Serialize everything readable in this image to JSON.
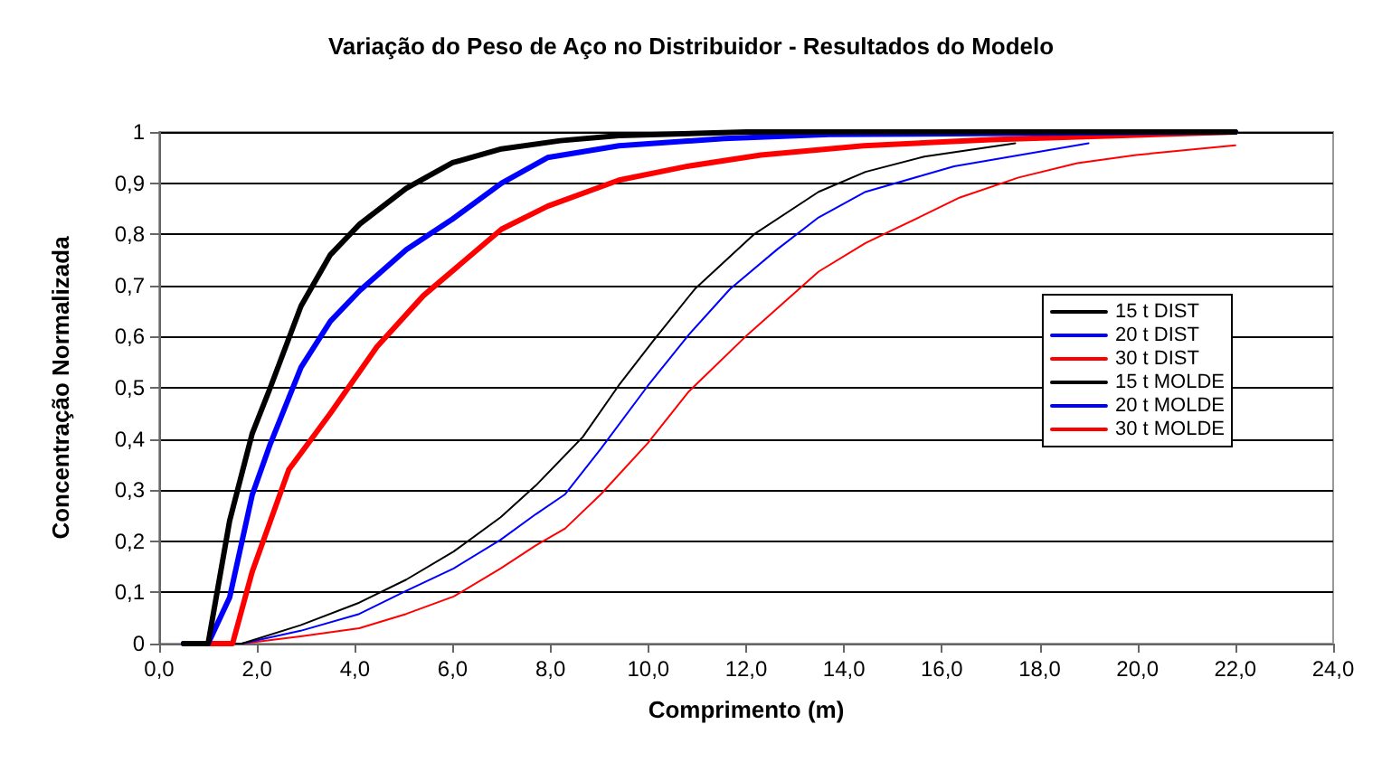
{
  "chart_data": {
    "type": "line",
    "title": "Variação do Peso de Aço no Distribuidor - Resultados do Modelo",
    "xlabel": "Comprimento (m)",
    "ylabel": "Concentração Normalizada",
    "xlim": [
      0,
      24
    ],
    "xticks": [
      {
        "value": 0,
        "label": "0,0"
      },
      {
        "value": 2,
        "label": "2,0"
      },
      {
        "value": 4,
        "label": "4,0"
      },
      {
        "value": 6,
        "label": "6,0"
      },
      {
        "value": 8,
        "label": "8,0"
      },
      {
        "value": 10,
        "label": "10,0"
      },
      {
        "value": 12,
        "label": "12,0"
      },
      {
        "value": 14,
        "label": "14,0"
      },
      {
        "value": 16,
        "label": "16,0"
      },
      {
        "value": 18,
        "label": "18,0"
      },
      {
        "value": 20,
        "label": "20,0"
      },
      {
        "value": 22,
        "label": "22,0"
      },
      {
        "value": 24,
        "label": "24,0"
      }
    ],
    "ylim": [
      0,
      1
    ],
    "yticks": [
      0,
      {
        "value": 0.1,
        "label": "0,1"
      },
      {
        "value": 0.2,
        "label": "0,2"
      },
      {
        "value": 0.3,
        "label": "0,3"
      },
      {
        "value": 0.4,
        "label": "0,4"
      },
      {
        "value": 0.5,
        "label": "0,5"
      },
      {
        "value": 0.6,
        "label": "0,6"
      },
      {
        "value": 0.7,
        "label": "0,7"
      },
      {
        "value": 0.8,
        "label": "0,8"
      },
      {
        "value": 0.9,
        "label": "0,9"
      },
      1
    ],
    "grid": "y",
    "legend": "right",
    "marker": "none",
    "line_style": "solid",
    "series": [
      {
        "name": "15 t DIST",
        "color": "#000000",
        "x": [
          0.5,
          1.0,
          1.44,
          1.9,
          2.27,
          2.9,
          3.5,
          4.1,
          5.05,
          6.0,
          7.0,
          8.2,
          9.4,
          12,
          22
        ],
        "values": [
          0,
          0,
          0.24,
          0.41,
          0.5,
          0.66,
          0.76,
          0.82,
          0.89,
          0.94,
          0.967,
          0.983,
          0.993,
          1,
          1
        ]
      },
      {
        "name": "20 t DIST",
        "color": "#0000ff",
        "x": [
          0.5,
          1.0,
          1.44,
          1.9,
          2.27,
          2.9,
          3.5,
          4.1,
          5.05,
          6.0,
          7.0,
          7.94,
          9.4,
          11.55,
          13.7,
          22
        ],
        "values": [
          0,
          0,
          0.09,
          0.29,
          0.39,
          0.54,
          0.63,
          0.69,
          0.77,
          0.83,
          0.9,
          0.95,
          0.973,
          0.987,
          0.995,
          1
        ]
      },
      {
        "name": "30 t DIST",
        "color": "#ff0000",
        "x": [
          0.5,
          1.5,
          1.9,
          2.65,
          3.5,
          4.45,
          5.4,
          7.0,
          7.94,
          9.4,
          10.8,
          12.3,
          14.4,
          17,
          22
        ],
        "values": [
          0,
          0,
          0.14,
          0.34,
          0.45,
          0.58,
          0.68,
          0.81,
          0.855,
          0.906,
          0.933,
          0.955,
          0.973,
          0.985,
          1
        ]
      },
      {
        "name": "15 t MOLDE",
        "color": "#000000",
        "x": [
          1.0,
          1.69,
          2.89,
          4.09,
          5.05,
          6.02,
          6.98,
          7.7,
          8.66,
          9.39,
          10.11,
          10.95,
          12.16,
          13.48,
          14.44,
          15.64,
          17.5
        ],
        "values": [
          0,
          0,
          0.036,
          0.08,
          0.125,
          0.18,
          0.247,
          0.309,
          0.404,
          0.504,
          0.593,
          0.693,
          0.8,
          0.883,
          0.922,
          0.952,
          0.978
        ]
      },
      {
        "name": "20 t MOLDE",
        "color": "#0000ff",
        "x": [
          1.0,
          1.69,
          2.89,
          4.09,
          5.05,
          6.02,
          6.98,
          7.7,
          8.3,
          9.03,
          9.99,
          10.83,
          11.67,
          12.64,
          13.48,
          14.44,
          15.64,
          16.25,
          19.0
        ],
        "values": [
          0,
          0,
          0.025,
          0.058,
          0.103,
          0.147,
          0.203,
          0.253,
          0.292,
          0.381,
          0.504,
          0.604,
          0.693,
          0.771,
          0.833,
          0.883,
          0.916,
          0.933,
          0.978
        ]
      },
      {
        "name": "30 t MOLDE",
        "color": "#ff0000",
        "x": [
          1.0,
          1.69,
          2.89,
          4.09,
          5.05,
          6.02,
          6.98,
          7.7,
          8.3,
          9.03,
          9.99,
          10.83,
          12.03,
          13.48,
          14.44,
          15.64,
          16.37,
          17.57,
          18.77,
          19.97,
          22.0
        ],
        "values": [
          0,
          0,
          0.014,
          0.03,
          0.058,
          0.092,
          0.147,
          0.192,
          0.225,
          0.292,
          0.392,
          0.493,
          0.604,
          0.727,
          0.783,
          0.838,
          0.872,
          0.911,
          0.939,
          0.955,
          0.974
        ]
      }
    ]
  }
}
